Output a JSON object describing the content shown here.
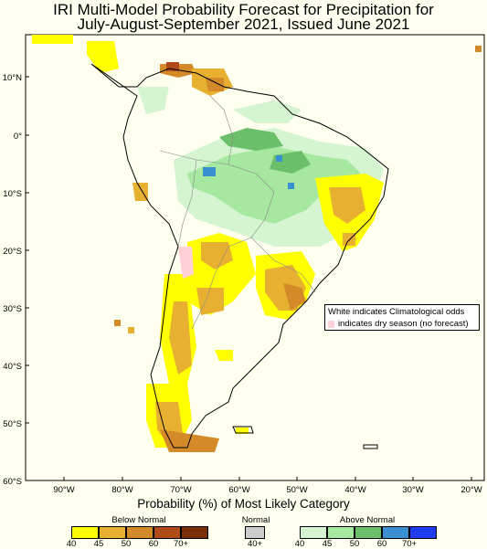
{
  "title_line1": "IRI Multi-Model Probability Forecast for Precipitation for",
  "title_line2": "July-August-September 2021, Issued June 2021",
  "lat_labels": [
    "10°N",
    "0°",
    "10°S",
    "20°S",
    "30°S",
    "40°S",
    "50°S",
    "60°S"
  ],
  "lon_labels": [
    "90°W",
    "80°W",
    "70°W",
    "60°W",
    "50°W",
    "40°W",
    "30°W",
    "20°W"
  ],
  "note": {
    "line1": "White indicates Climatological odds",
    "line2": "indicates dry season (no forecast)",
    "dry_color": "#ffd0d8"
  },
  "legend": {
    "title": "Probability (%) of Most Likely Category",
    "below": {
      "label": "Below Normal",
      "colors": [
        "#ffff00",
        "#e8b030",
        "#d58a2a",
        "#b04a18",
        "#7a2e08"
      ],
      "ticks": [
        "40",
        "45",
        "50",
        "60",
        "70+"
      ]
    },
    "normal": {
      "label": "Normal",
      "colors": [
        "#cccccc"
      ],
      "ticks": [
        "40+"
      ]
    },
    "above": {
      "label": "Above Normal",
      "colors": [
        "#d4f5d0",
        "#a6e8a0",
        "#6cbf6a",
        "#3a8fd0",
        "#1f3cf0"
      ],
      "ticks": [
        "40",
        "45",
        "50",
        "60",
        "70+"
      ]
    }
  }
}
